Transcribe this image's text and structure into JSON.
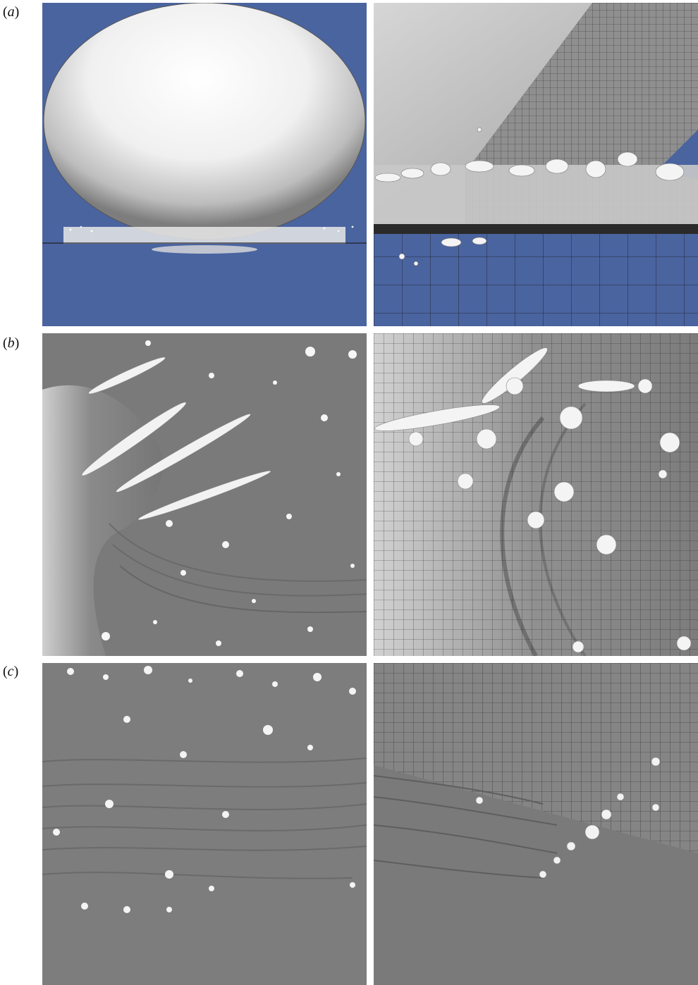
{
  "figure": {
    "rows": [
      {
        "label_open": "(",
        "label_letter": "a",
        "label_close": ")"
      },
      {
        "label_open": "(",
        "label_letter": "b",
        "label_close": ")"
      },
      {
        "label_open": "(",
        "label_letter": "c",
        "label_close": ")"
      }
    ],
    "colors": {
      "background_blue": "#4a64a0",
      "surface_grey": "#7a7a7a",
      "droplet_white": "#f4f4f4",
      "mesh_line": "#1a1a1a"
    }
  }
}
